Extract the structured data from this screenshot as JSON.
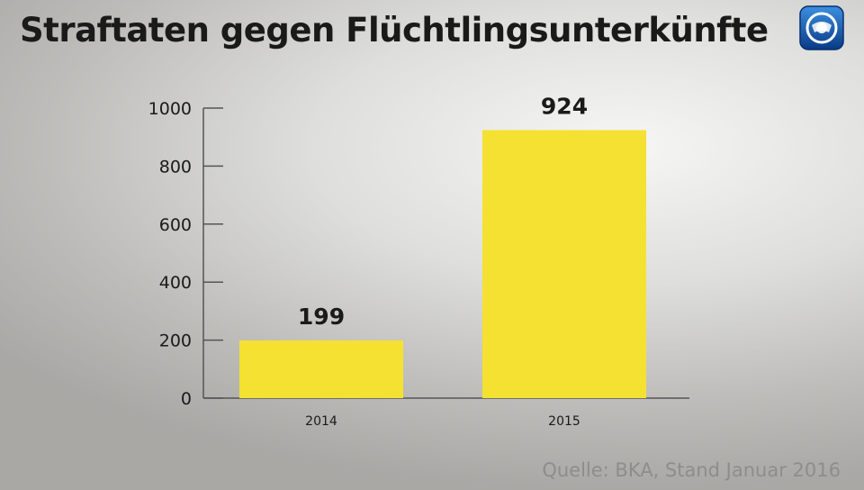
{
  "title": "Straftaten gegen Flüchtlingsunterkünfte",
  "source": "Quelle: BKA, Stand Januar 2016",
  "logo": {
    "icon": "tagesschau-logo-icon",
    "colors": [
      "#0b3d8c",
      "#2e86d6",
      "#ffffff"
    ]
  },
  "chart_data": {
    "type": "bar",
    "title": "Straftaten gegen Flüchtlingsunterkünfte",
    "categories": [
      "2014",
      "2015"
    ],
    "values": [
      199,
      924
    ],
    "data_labels": [
      "199",
      "924"
    ],
    "ylim": [
      0,
      1000
    ],
    "yticks": [
      0,
      200,
      400,
      600,
      800,
      1000
    ],
    "xlabel": "",
    "ylabel": "",
    "grid": false,
    "legend": "none",
    "bar_color": "#f5e132",
    "axis_color": "#555555"
  }
}
